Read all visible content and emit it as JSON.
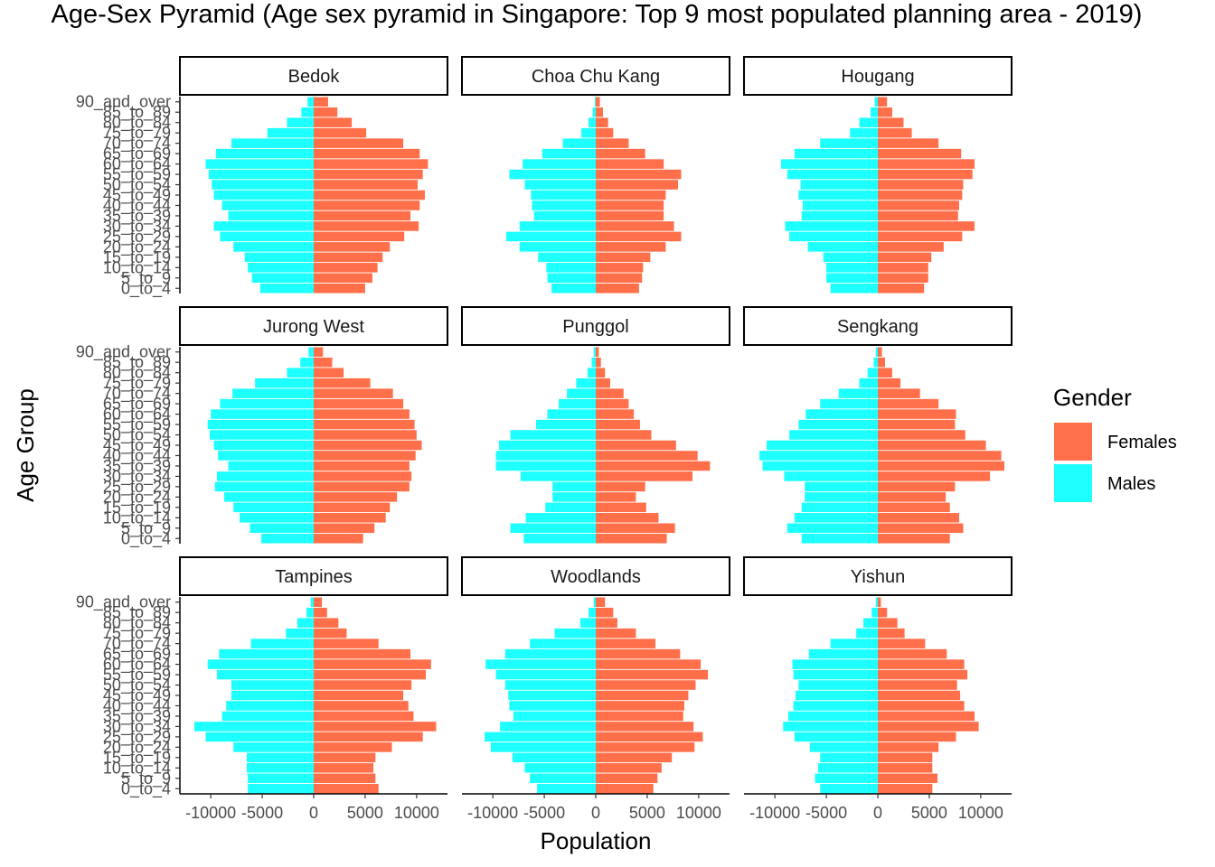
{
  "chart_data": {
    "type": "bar",
    "title": "Age-Sex Pyramid (Age sex pyramid in Singapore: Top 9 most populated planning area - 2019)",
    "xlabel": "Population",
    "ylabel": "Age Group",
    "xlim": [
      -13000,
      13000
    ],
    "x_ticks": [
      -10000,
      -5000,
      0,
      5000,
      10000
    ],
    "x_tick_labels": [
      "-10000",
      "-5000",
      "0",
      "5000",
      "10000"
    ],
    "grid": false,
    "legend": {
      "title": "Gender",
      "position": "right",
      "entries": [
        {
          "label": "Females",
          "color": "#FF6F4A"
        },
        {
          "label": "Males",
          "color": "#1EFFFF"
        }
      ]
    },
    "categories": [
      "0_to_4",
      "5_to_9",
      "10_to_14",
      "15_to_19",
      "20_to_24",
      "25_to_29",
      "30_to_34",
      "35_to_39",
      "40_to_44",
      "45_to_49",
      "50_to_54",
      "55_to_59",
      "60_to_64",
      "65_to_69",
      "70_to_74",
      "75_to_79",
      "80_to_84",
      "85_to_89",
      "90_and_over"
    ],
    "panels": [
      {
        "name": "Bedok",
        "males": [
          5200,
          6000,
          6400,
          6700,
          7800,
          9100,
          9700,
          8300,
          8900,
          9700,
          9900,
          10200,
          10500,
          9500,
          8000,
          4500,
          2600,
          1200,
          600
        ],
        "females": [
          5000,
          5700,
          6200,
          6700,
          7400,
          8800,
          10200,
          9400,
          10300,
          10800,
          10100,
          10600,
          11100,
          10300,
          8700,
          5100,
          3700,
          2300,
          1400
        ]
      },
      {
        "name": "Choa Chu Kang",
        "males": [
          4300,
          4700,
          4800,
          5600,
          7400,
          8700,
          7400,
          6000,
          6200,
          6300,
          6900,
          8400,
          7100,
          5200,
          3200,
          1400,
          700,
          300,
          100
        ],
        "females": [
          4200,
          4500,
          4600,
          5300,
          6800,
          8300,
          7600,
          6600,
          6600,
          6800,
          8000,
          8300,
          6600,
          4800,
          3200,
          1700,
          1200,
          700,
          400
        ]
      },
      {
        "name": "Hougang",
        "males": [
          4600,
          5000,
          5000,
          5300,
          6800,
          8600,
          9000,
          7400,
          7300,
          7700,
          7500,
          8800,
          9400,
          8100,
          5600,
          2700,
          1800,
          700,
          300
        ],
        "females": [
          4500,
          4900,
          4900,
          5200,
          6400,
          8200,
          9400,
          7800,
          7900,
          8200,
          8300,
          9200,
          9400,
          8100,
          5900,
          3300,
          2500,
          1400,
          900
        ]
      },
      {
        "name": "Jurong West",
        "males": [
          5100,
          6200,
          7200,
          7800,
          8700,
          9600,
          9400,
          8300,
          9300,
          9700,
          10100,
          10300,
          10000,
          9100,
          7900,
          5700,
          2600,
          1300,
          500
        ],
        "females": [
          4800,
          5900,
          7000,
          7400,
          8100,
          9300,
          9500,
          9300,
          9900,
          10500,
          10000,
          9800,
          9300,
          8700,
          7700,
          5500,
          2900,
          1800,
          900
        ]
      },
      {
        "name": "Punggol",
        "males": [
          7000,
          8300,
          6800,
          4900,
          4200,
          4200,
          7300,
          9700,
          9700,
          9400,
          8300,
          5800,
          4700,
          3600,
          2800,
          1900,
          800,
          400,
          200
        ],
        "females": [
          6900,
          7700,
          6100,
          4900,
          3900,
          4800,
          9400,
          11100,
          9900,
          7800,
          5400,
          4300,
          3700,
          3200,
          2700,
          1400,
          900,
          500,
          300
        ]
      },
      {
        "name": "Sengkang",
        "males": [
          7400,
          8800,
          8100,
          7400,
          7100,
          7100,
          9100,
          11200,
          11500,
          10800,
          8600,
          7700,
          7000,
          5600,
          3800,
          1800,
          1000,
          400,
          200
        ],
        "females": [
          7000,
          8300,
          7900,
          7000,
          6600,
          7500,
          10900,
          12300,
          12000,
          10500,
          8500,
          7500,
          7600,
          5900,
          4100,
          2200,
          1400,
          700,
          400
        ]
      },
      {
        "name": "Tampines",
        "males": [
          6400,
          6400,
          6500,
          6500,
          7800,
          10500,
          11600,
          8900,
          8500,
          8000,
          8000,
          9400,
          10300,
          9200,
          6100,
          2700,
          1600,
          700,
          300
        ],
        "females": [
          6300,
          6000,
          5800,
          6000,
          7600,
          10600,
          11900,
          9700,
          9200,
          8700,
          9500,
          10900,
          11400,
          9400,
          6300,
          3200,
          2400,
          1300,
          800
        ]
      },
      {
        "name": "Woodlands",
        "males": [
          5700,
          6400,
          6900,
          8100,
          10200,
          10800,
          9300,
          8000,
          8400,
          8500,
          8800,
          9700,
          10700,
          8800,
          6400,
          4000,
          1500,
          700,
          200
        ],
        "females": [
          5600,
          6000,
          6400,
          7400,
          9600,
          10400,
          9500,
          8500,
          8600,
          9000,
          9700,
          10900,
          10200,
          8200,
          5800,
          3900,
          2100,
          1700,
          900
        ]
      },
      {
        "name": "Yishun",
        "males": [
          5600,
          6100,
          5800,
          5600,
          6600,
          8100,
          9200,
          8700,
          8200,
          8000,
          7700,
          8200,
          8300,
          6700,
          4600,
          2100,
          1400,
          600,
          200
        ],
        "females": [
          5300,
          5800,
          5300,
          5300,
          5900,
          7600,
          9800,
          9400,
          8400,
          8000,
          7700,
          8700,
          8400,
          6700,
          4600,
          2600,
          1900,
          900,
          300
        ]
      }
    ]
  }
}
